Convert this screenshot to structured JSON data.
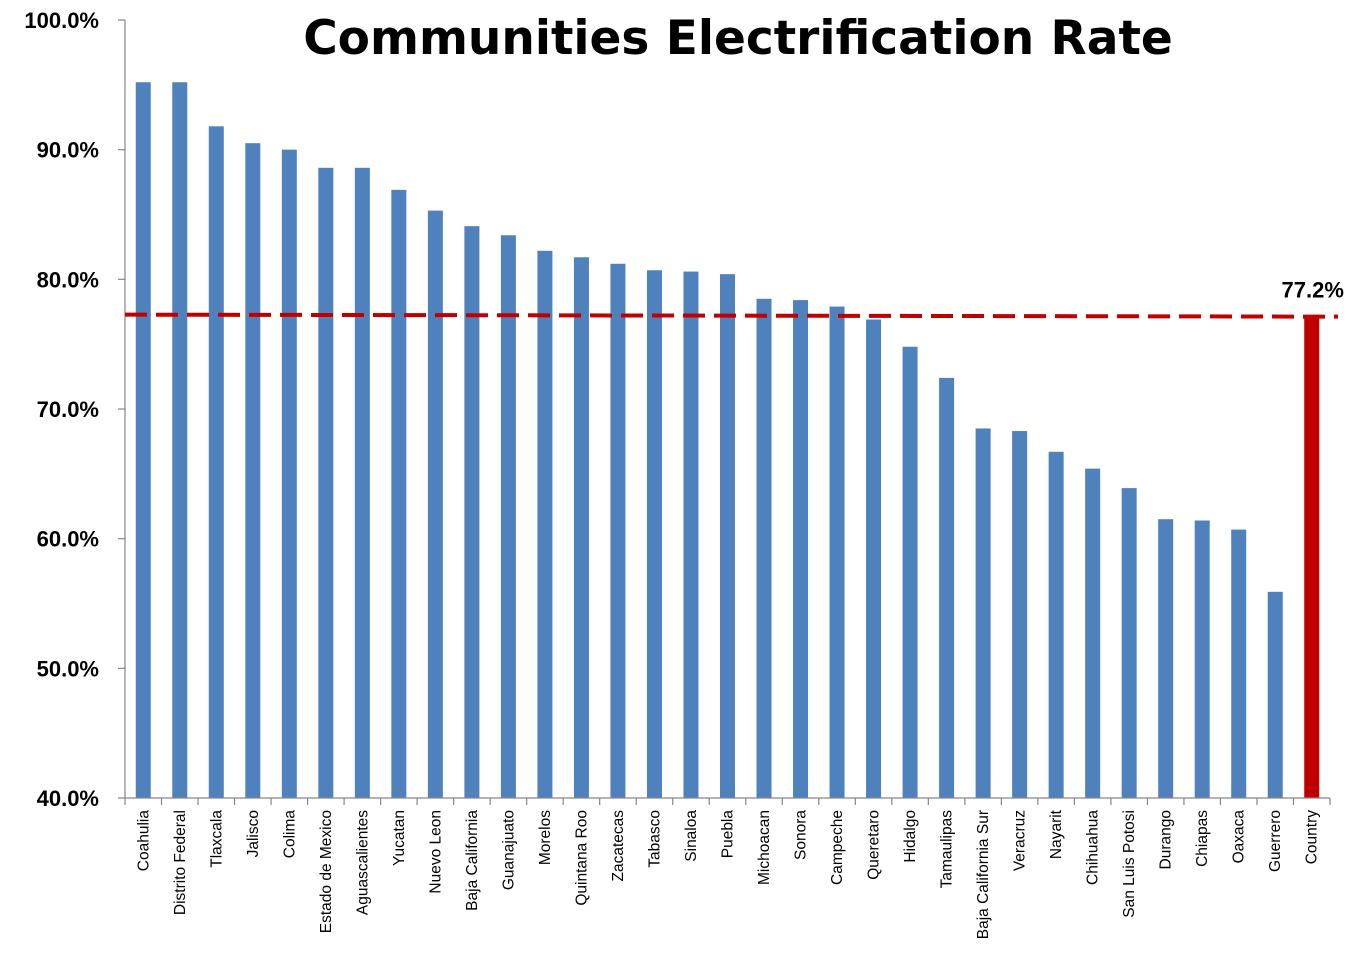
{
  "chart_data": {
    "type": "bar",
    "title": "Communities Electrification Rate",
    "xlabel": "",
    "ylabel": "",
    "ylim": [
      40,
      100
    ],
    "yticks": [
      40,
      50,
      60,
      70,
      80,
      90,
      100
    ],
    "ytick_labels": [
      "40.0%",
      "50.0%",
      "60.0%",
      "70.0%",
      "80.0%",
      "90.0%",
      "100.0%"
    ],
    "y_unit": "%",
    "grid": false,
    "legend": "none",
    "categories": [
      "Coahulia",
      "Distrito Federal",
      "Tlaxcala",
      "Jalisco",
      "Colima",
      "Estado de Mexico",
      "Aguascalientes",
      "Yucatan",
      "Nuevo Leon",
      "Baja California",
      "Guanajuato",
      "Morelos",
      "Quintana Roo",
      "Zacatecas",
      "Tabasco",
      "Sinaloa",
      "Puebla",
      "Michoacan",
      "Sonora",
      "Campeche",
      "Queretaro",
      "Hidalgo",
      "Tamaulipas",
      "Baja California Sur",
      "Veracruz",
      "Nayarit",
      "Chihuahua",
      "San Luis Potosi",
      "Durango",
      "Chiapas",
      "Oaxaca",
      "Guerrero",
      "Country"
    ],
    "values": [
      95.2,
      95.2,
      91.8,
      90.5,
      90.0,
      88.6,
      88.6,
      86.9,
      85.3,
      84.1,
      83.4,
      82.2,
      81.7,
      81.2,
      80.7,
      80.6,
      80.4,
      78.5,
      78.4,
      77.9,
      76.9,
      74.8,
      72.4,
      68.5,
      68.3,
      66.7,
      65.4,
      63.9,
      61.5,
      61.4,
      60.7,
      55.9,
      77.2
    ],
    "highlight_index": 32,
    "reference_line": {
      "value": 77.2,
      "label": "77.2%",
      "style": "dashed"
    },
    "colors": {
      "bar": "#4f81bd",
      "highlight_bar": "#c00000",
      "reference_line": "#c00000",
      "axis": "#868686"
    }
  }
}
